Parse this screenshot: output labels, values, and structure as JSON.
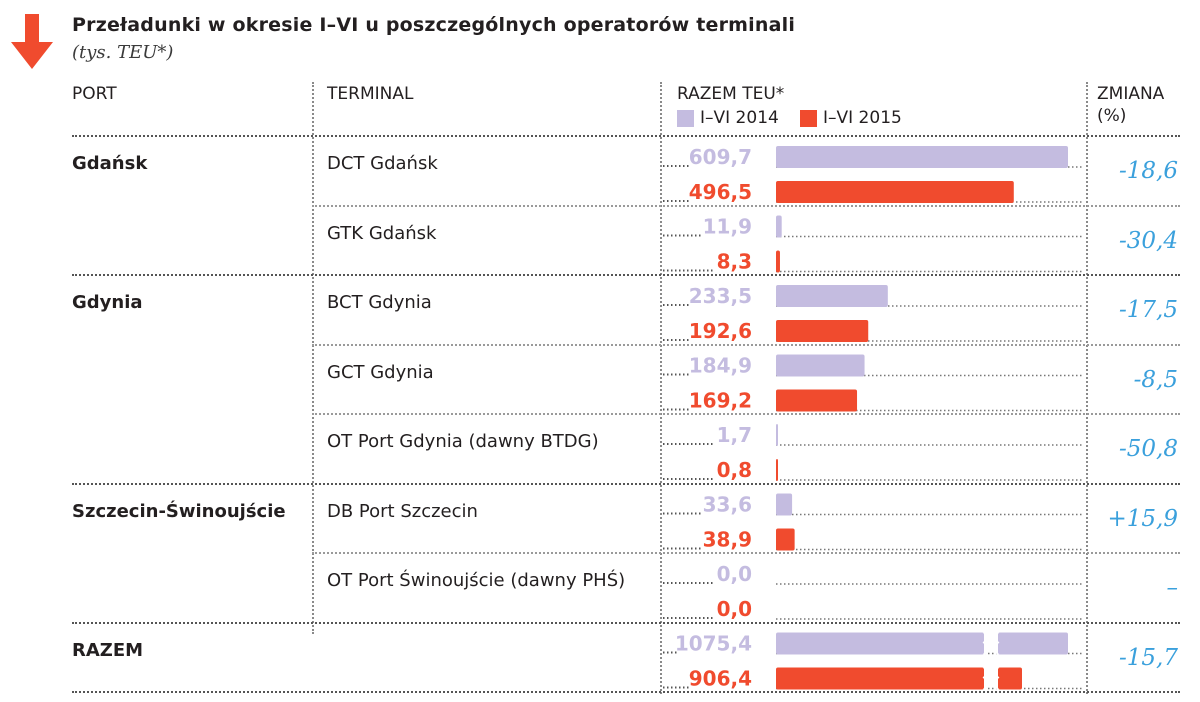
{
  "title": "Przeładunki w okresie I–VI u poszczególnych operatorów terminali",
  "subtitle": "(tys. TEU*)",
  "headers": {
    "port": "PORT",
    "terminal": "TERMINAL",
    "total": "RAZEM TEU*",
    "change_line1": "ZMIANA",
    "change_line2": "(%)"
  },
  "colors": {
    "series_2014": "#c4bce0",
    "series_2015": "#f04b2e",
    "change": "#3aa0dc",
    "arrow": "#f04b2e"
  },
  "chart_data": {
    "type": "bar",
    "orientation": "horizontal",
    "series": [
      {
        "name": "I–VI 2014",
        "color": "#c4bce0"
      },
      {
        "name": "I–VI 2015",
        "color": "#f04b2e"
      }
    ],
    "rows": [
      {
        "port": "Gdańsk",
        "terminal": "DCT Gdańsk",
        "v2014": 609.7,
        "v2015": 496.5,
        "label2014": "609,7",
        "label2015": "496,5",
        "change": "-18,6"
      },
      {
        "port": "",
        "terminal": "GTK Gdańsk",
        "v2014": 11.9,
        "v2015": 8.3,
        "label2014": "11,9",
        "label2015": "8,3",
        "change": "-30,4"
      },
      {
        "port": "Gdynia",
        "terminal": "BCT Gdynia",
        "v2014": 233.5,
        "v2015": 192.6,
        "label2014": "233,5",
        "label2015": "192,6",
        "change": "-17,5"
      },
      {
        "port": "",
        "terminal": "GCT Gdynia",
        "v2014": 184.9,
        "v2015": 169.2,
        "label2014": "184,9",
        "label2015": "169,2",
        "change": "-8,5"
      },
      {
        "port": "",
        "terminal": "OT Port Gdynia (dawny BTDG)",
        "v2014": 1.7,
        "v2015": 0.8,
        "label2014": "1,7",
        "label2015": "0,8",
        "change": "-50,8"
      },
      {
        "port": "Szczecin-Świnoujście",
        "terminal": "DB Port Szczecin",
        "v2014": 33.6,
        "v2015": 38.9,
        "label2014": "33,6",
        "label2015": "38,9",
        "change": "+15,9"
      },
      {
        "port": "",
        "terminal": "OT Port Świnoujście (dawny PHŚ)",
        "v2014": 0.0,
        "v2015": 0.0,
        "label2014": "0,0",
        "label2015": "0,0",
        "change": "–"
      },
      {
        "port": "RAZEM",
        "terminal": "",
        "v2014": 1075.4,
        "v2015": 906.4,
        "label2014": "1075,4",
        "label2015": "906,4",
        "change": "-15,7",
        "broken": true
      }
    ]
  }
}
